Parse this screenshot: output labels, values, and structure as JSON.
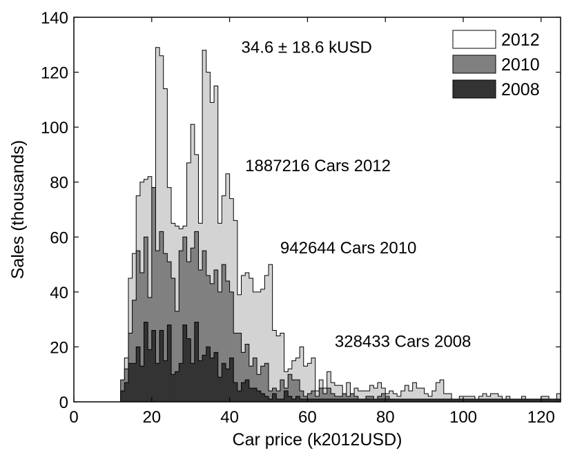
{
  "chart_data": {
    "type": "histogram-step",
    "xlabel": "Car price (k2012USD)",
    "ylabel": "Sales (thousands)",
    "xlim": [
      0,
      125
    ],
    "ylim": [
      0,
      140
    ],
    "xticks": [
      0,
      20,
      40,
      60,
      80,
      100,
      120
    ],
    "yticks": [
      0,
      20,
      40,
      60,
      80,
      100,
      120,
      140
    ],
    "bin_width": 1,
    "bin_start": 12,
    "grid": false,
    "legend_position": "top-right",
    "annotations": [
      {
        "text": "34.6 ± 18.6 kUSD",
        "x": 43,
        "y": 127
      },
      {
        "text": "1887216 Cars 2012",
        "x": 44,
        "y": 84
      },
      {
        "text": "942644 Cars 2010",
        "x": 53,
        "y": 54
      },
      {
        "text": "328433 Cars 2008",
        "x": 67,
        "y": 20
      }
    ],
    "series": [
      {
        "name": "2012",
        "color": "#d3d3d3",
        "values": [
          0,
          16,
          45,
          54,
          75,
          80,
          81,
          82,
          78,
          129,
          126,
          114,
          78,
          65,
          64,
          63,
          64,
          87,
          101,
          90,
          65,
          128,
          120,
          109,
          115,
          65,
          75,
          83,
          74,
          66,
          39,
          46,
          47,
          45,
          40,
          40,
          41,
          46,
          50,
          26,
          24,
          25,
          11,
          12,
          15,
          16,
          20,
          13,
          14,
          16,
          4,
          8,
          5,
          11,
          7,
          6,
          6,
          3,
          7,
          3,
          5,
          4,
          4,
          4,
          6,
          5,
          7,
          5,
          3,
          4,
          3,
          2,
          4,
          6,
          4,
          7,
          5,
          5,
          3,
          2,
          4,
          7,
          8,
          3,
          3,
          1,
          1,
          2,
          2,
          2,
          2,
          1,
          2,
          3,
          2,
          3,
          3,
          2,
          1,
          2,
          1,
          1,
          1,
          2,
          1,
          1,
          1,
          1,
          2,
          2,
          1,
          1,
          3,
          1,
          1,
          1,
          1,
          1,
          1,
          1
        ]
      },
      {
        "name": "2010",
        "color": "#808080",
        "values": [
          8,
          12,
          25,
          37,
          55,
          47,
          60,
          38,
          78,
          55,
          62,
          54,
          51,
          45,
          33,
          55,
          60,
          51,
          56,
          62,
          48,
          55,
          46,
          43,
          48,
          40,
          50,
          44,
          40,
          25,
          25,
          18,
          21,
          13,
          16,
          10,
          13,
          14,
          4,
          5,
          4,
          8,
          5,
          10,
          8,
          8,
          4,
          2,
          3,
          4,
          2,
          5,
          3,
          5,
          3,
          2,
          2,
          3,
          2,
          3,
          2,
          1,
          1,
          2,
          2,
          1,
          2,
          3,
          2,
          1,
          1,
          1,
          1,
          1,
          1,
          1,
          1,
          1,
          1,
          1,
          1,
          1,
          1,
          1,
          1,
          1,
          1,
          1,
          1,
          1,
          1,
          1,
          1,
          1,
          1,
          1,
          1,
          1,
          1,
          1,
          1,
          1,
          1,
          1,
          1,
          1,
          1,
          1,
          1,
          1,
          1,
          1,
          1,
          1,
          1,
          1,
          1,
          1,
          1,
          1
        ]
      },
      {
        "name": "2008",
        "color": "#333333",
        "values": [
          4,
          7,
          14,
          14,
          20,
          13,
          29,
          19,
          26,
          14,
          26,
          15,
          28,
          10,
          11,
          14,
          28,
          23,
          14,
          29,
          15,
          17,
          20,
          16,
          18,
          9,
          14,
          12,
          16,
          7,
          4,
          7,
          8,
          5,
          5,
          4,
          3,
          2,
          1,
          3,
          1,
          1,
          4,
          2,
          1,
          2,
          1,
          1,
          1,
          1,
          1,
          1,
          1,
          1,
          1,
          1,
          1,
          1,
          1,
          1,
          1,
          1,
          1,
          1,
          1,
          1,
          1,
          1,
          1,
          1,
          1,
          1,
          1,
          1,
          1,
          1,
          1,
          1,
          1,
          1,
          1,
          1,
          1,
          1,
          1,
          1,
          1,
          1,
          1,
          1,
          1,
          1,
          1,
          1,
          1,
          1,
          1,
          1,
          1,
          1,
          1,
          1,
          1,
          1,
          1,
          1,
          1,
          1,
          1,
          1,
          1,
          1,
          1,
          1,
          1,
          1,
          1,
          1,
          1,
          1
        ]
      }
    ]
  }
}
